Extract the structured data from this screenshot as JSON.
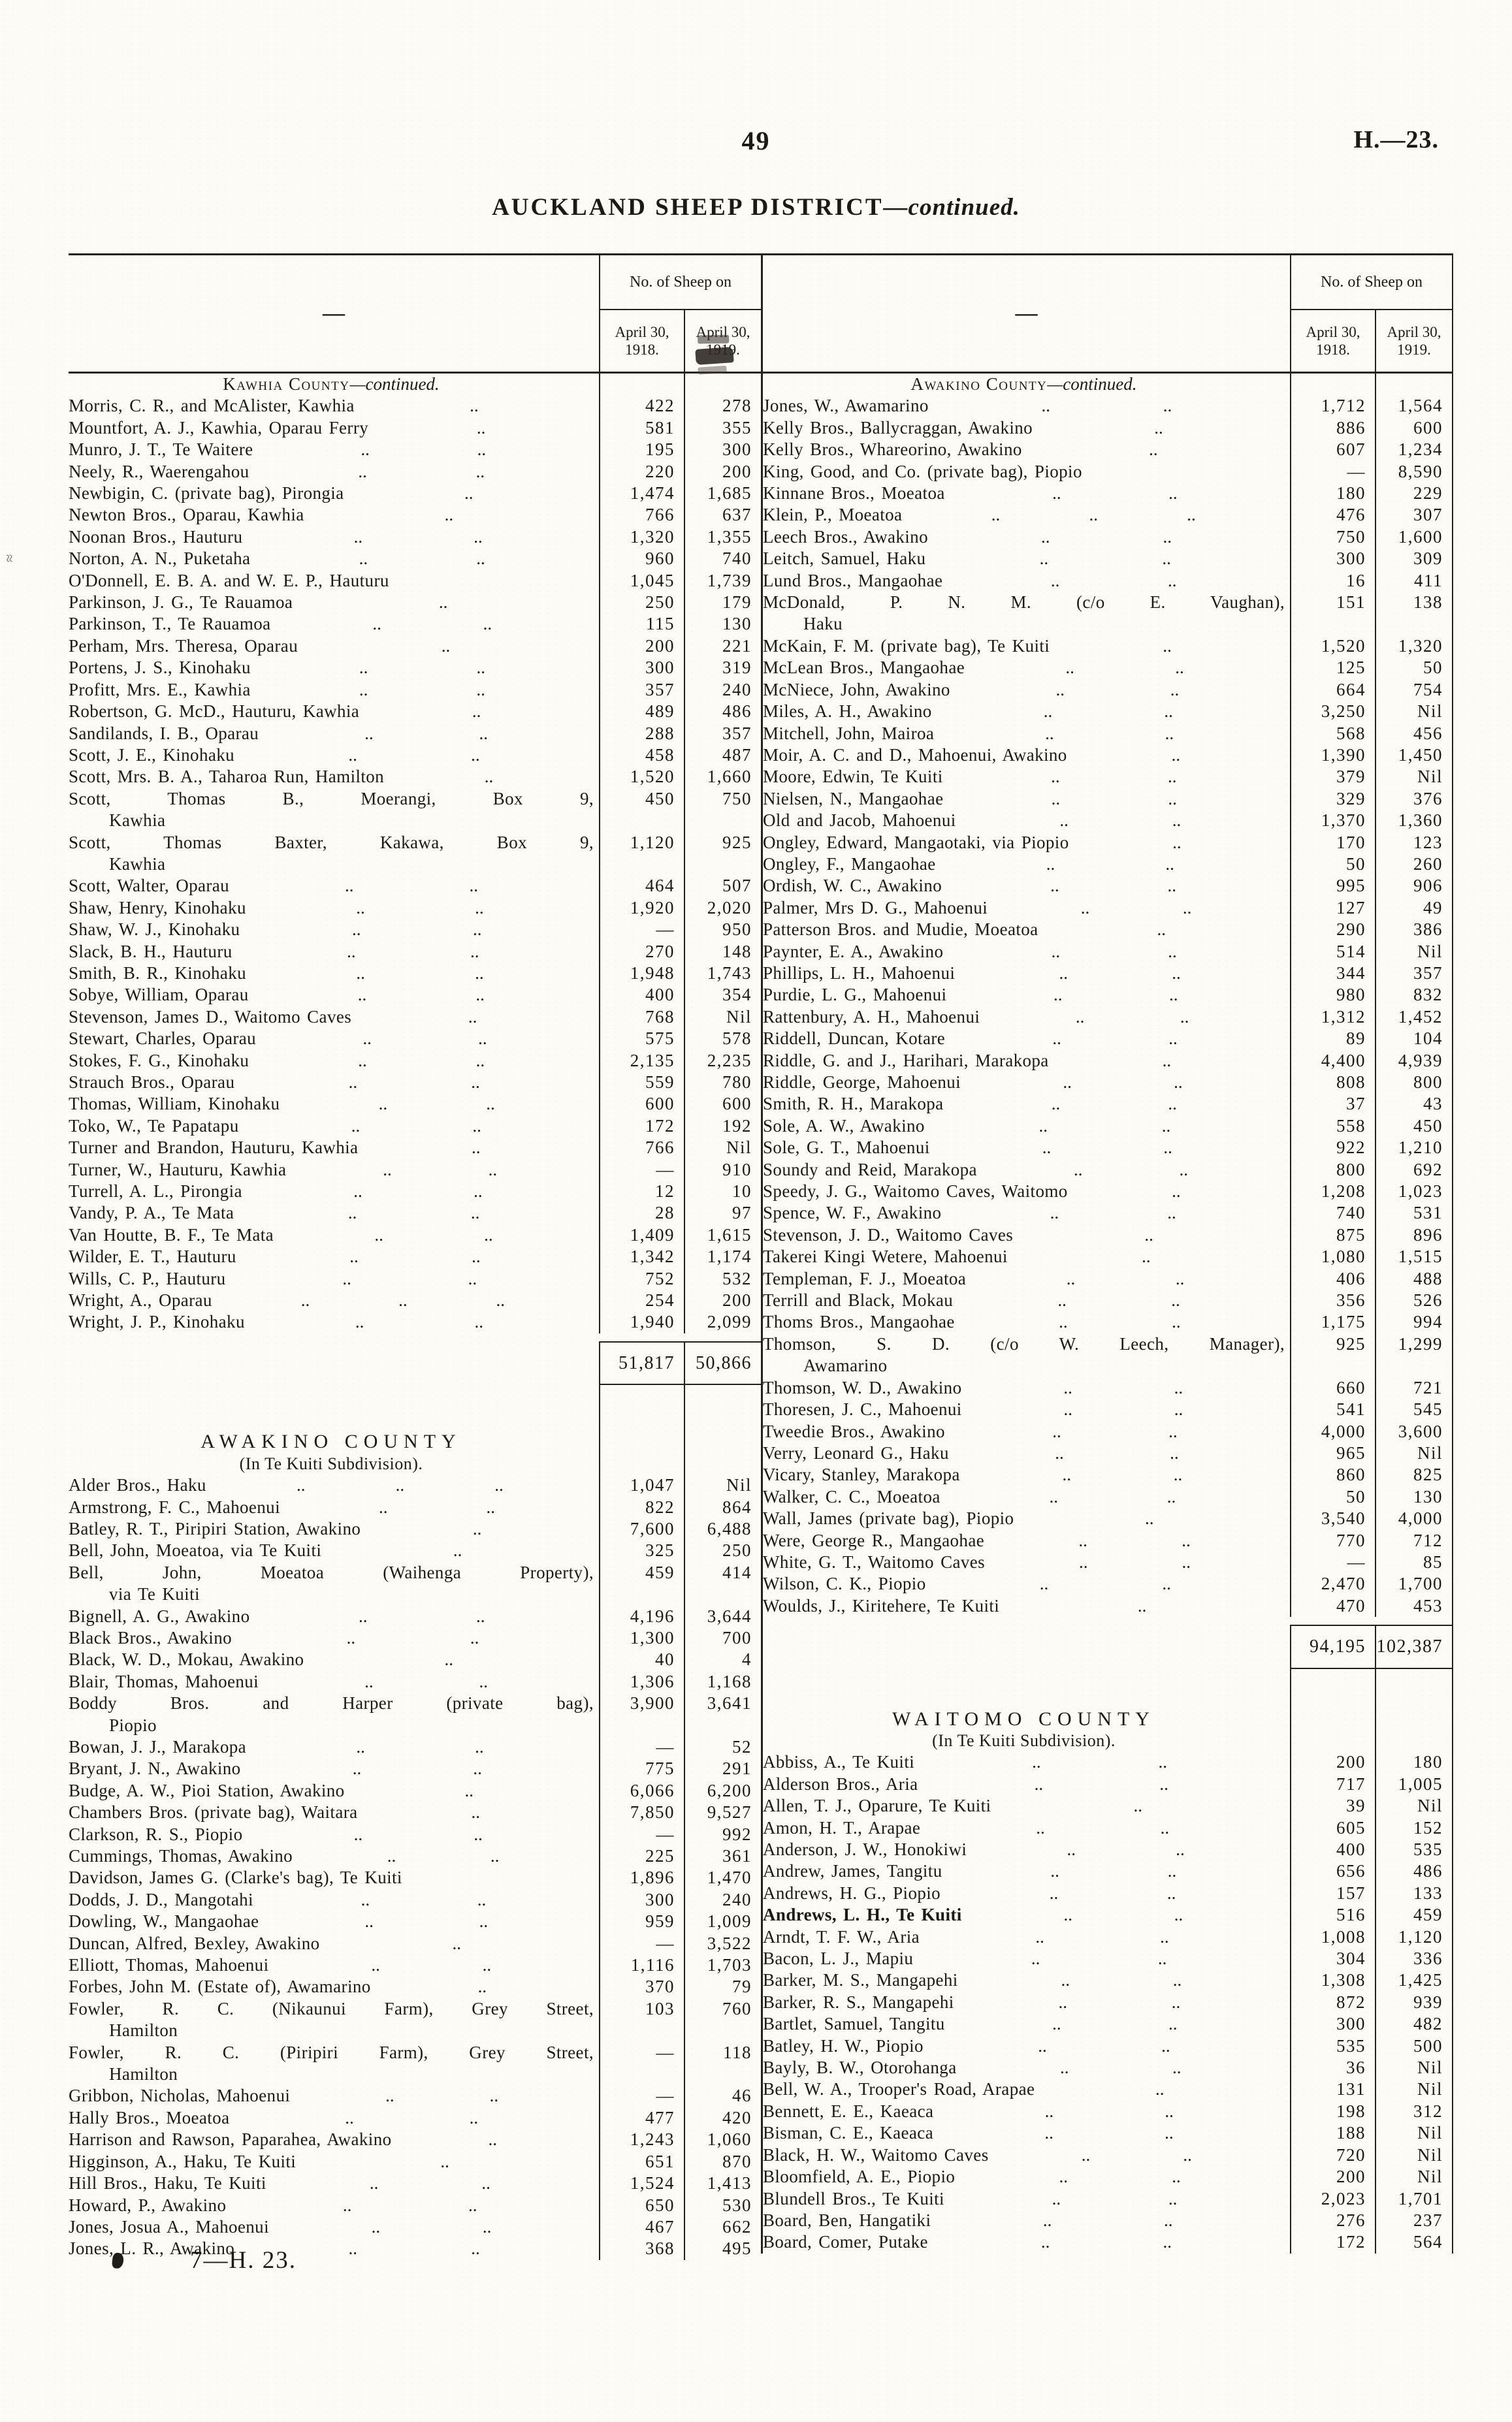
{
  "page": {
    "number": "49",
    "code": "H.—23.",
    "title": "AUCKLAND SHEEP DISTRICT",
    "title_suffix": "—continued.",
    "footer_sig": "7—H. 23."
  },
  "table_header": {
    "stub": "—",
    "span": "No. of Sheep on",
    "c1": [
      "April 30,",
      "1918."
    ],
    "c2": [
      "April 30,",
      "1919."
    ]
  },
  "left_table": {
    "sections": [
      {
        "heading": {
          "type": "continued",
          "title": "Kawhia County",
          "suffix": "—continued."
        },
        "rows": [
          {
            "n": "Morris, C. R., and McAlister, Kawhia",
            "a": "422",
            "b": "278"
          },
          {
            "n": "Mountfort, A. J., Kawhia, Oparau Ferry",
            "a": "581",
            "b": "355"
          },
          {
            "n": "Munro, J. T., Te Waitere",
            "a": "195",
            "b": "300"
          },
          {
            "n": "Neely, R., Waerengahou",
            "a": "220",
            "b": "200"
          },
          {
            "n": "Newbigin, C. (private bag), Pirongia",
            "a": "1,474",
            "b": "1,685"
          },
          {
            "n": "Newton Bros., Oparau, Kawhia",
            "a": "766",
            "b": "637"
          },
          {
            "n": "Noonan Bros., Hauturu",
            "a": "1,320",
            "b": "1,355"
          },
          {
            "n": "Norton, A. N., Puketaha",
            "a": "960",
            "b": "740"
          },
          {
            "n": "O'Donnell, E. B. A. and W. E. P., Hauturu",
            "a": "1,045",
            "b": "1,739"
          },
          {
            "n": "Parkinson, J. G., Te Rauamoa",
            "a": "250",
            "b": "179"
          },
          {
            "n": "Parkinson, T., Te Rauamoa",
            "a": "115",
            "b": "130"
          },
          {
            "n": "Perham, Mrs. Theresa, Oparau",
            "a": "200",
            "b": "221"
          },
          {
            "n": "Portens, J. S., Kinohaku",
            "a": "300",
            "b": "319"
          },
          {
            "n": "Profitt, Mrs. E., Kawhia",
            "a": "357",
            "b": "240"
          },
          {
            "n": "Robertson, G. McD., Hauturu, Kawhia",
            "a": "489",
            "b": "486"
          },
          {
            "n": "Sandilands, I. B., Oparau",
            "a": "288",
            "b": "357"
          },
          {
            "n": "Scott, J. E., Kinohaku",
            "a": "458",
            "b": "487"
          },
          {
            "n": "Scott, Mrs. B. A., Taharoa Run, Hamilton",
            "a": "1,520",
            "b": "1,660"
          },
          {
            "n": "Scott, Thomas B., Moerangi, Box 9,",
            "n2": "Kawhia",
            "a": "450",
            "b": "750"
          },
          {
            "n": "Scott, Thomas Baxter, Kakawa, Box 9,",
            "n2": "Kawhia",
            "a": "1,120",
            "b": "925"
          },
          {
            "n": "Scott, Walter, Oparau",
            "a": "464",
            "b": "507"
          },
          {
            "n": "Shaw, Henry, Kinohaku",
            "a": "1,920",
            "b": "2,020"
          },
          {
            "n": "Shaw, W. J., Kinohaku",
            "a": "—",
            "b": "950"
          },
          {
            "n": "Slack, B. H., Hauturu",
            "a": "270",
            "b": "148"
          },
          {
            "n": "Smith, B. R., Kinohaku",
            "a": "1,948",
            "b": "1,743"
          },
          {
            "n": "Sobye, William, Oparau",
            "a": "400",
            "b": "354"
          },
          {
            "n": "Stevenson, James D., Waitomo Caves",
            "a": "768",
            "b": "Nil"
          },
          {
            "n": "Stewart, Charles, Oparau",
            "a": "575",
            "b": "578"
          },
          {
            "n": "Stokes, F. G., Kinohaku",
            "a": "2,135",
            "b": "2,235"
          },
          {
            "n": "Strauch Bros., Oparau",
            "a": "559",
            "b": "780"
          },
          {
            "n": "Thomas, William, Kinohaku",
            "a": "600",
            "b": "600"
          },
          {
            "n": "Toko, W., Te Papatapu",
            "a": "172",
            "b": "192"
          },
          {
            "n": "Turner and Brandon, Hauturu, Kawhia",
            "a": "766",
            "b": "Nil"
          },
          {
            "n": "Turner, W., Hauturu, Kawhia",
            "a": "—",
            "b": "910"
          },
          {
            "n": "Turrell, A. L., Pirongia",
            "a": "12",
            "b": "10"
          },
          {
            "n": "Vandy, P. A., Te Mata",
            "a": "28",
            "b": "97"
          },
          {
            "n": "Van Houtte, B. F., Te Mata",
            "a": "1,409",
            "b": "1,615"
          },
          {
            "n": "Wilder, E. T., Hauturu",
            "a": "1,342",
            "b": "1,174"
          },
          {
            "n": "Wills, C. P., Hauturu",
            "a": "752",
            "b": "532"
          },
          {
            "n": "Wright, A., Oparau",
            "a": "254",
            "b": "200"
          },
          {
            "n": "Wright, J. P., Kinohaku",
            "a": "1,940",
            "b": "2,099"
          }
        ],
        "total": {
          "a": "51,817",
          "b": "50,866"
        }
      },
      {
        "heading": {
          "type": "new",
          "title": "AWAKINO COUNTY",
          "sub": "(In Te Kuiti Subdivision)."
        },
        "gap_before": 70,
        "rows": [
          {
            "n": "Alder Bros., Haku",
            "a": "1,047",
            "b": "Nil"
          },
          {
            "n": "Armstrong, F. C., Mahoenui",
            "a": "822",
            "b": "864"
          },
          {
            "n": "Batley, R. T., Piripiri Station, Awakino",
            "a": "7,600",
            "b": "6,488"
          },
          {
            "n": "Bell, John, Moeatoa, via Te Kuiti",
            "a": "325",
            "b": "250"
          },
          {
            "n": "Bell, John, Moeatoa (Waihenga Property),",
            "n2": "via Te Kuiti",
            "a": "459",
            "b": "414"
          },
          {
            "n": "Bignell, A. G., Awakino",
            "a": "4,196",
            "b": "3,644"
          },
          {
            "n": "Black Bros., Awakino",
            "a": "1,300",
            "b": "700"
          },
          {
            "n": "Black, W. D., Mokau, Awakino",
            "a": "40",
            "b": "4"
          },
          {
            "n": "Blair, Thomas, Mahoenui",
            "a": "1,306",
            "b": "1,168"
          },
          {
            "n": "Boddy Bros. and Harper (private bag),",
            "n2": "Piopio",
            "a": "3,900",
            "b": "3,641"
          },
          {
            "n": "Bowan, J. J., Marakopa",
            "a": "—",
            "b": "52"
          },
          {
            "n": "Bryant, J. N., Awakino",
            "a": "775",
            "b": "291"
          },
          {
            "n": "Budge, A. W., Pioi Station, Awakino",
            "a": "6,066",
            "b": "6,200"
          },
          {
            "n": "Chambers Bros. (private bag), Waitara",
            "a": "7,850",
            "b": "9,527"
          },
          {
            "n": "Clarkson, R. S., Piopio",
            "a": "—",
            "b": "992"
          },
          {
            "n": "Cummings, Thomas, Awakino",
            "a": "225",
            "b": "361"
          },
          {
            "n": "Davidson, James G. (Clarke's bag), Te Kuiti",
            "a": "1,896",
            "b": "1,470"
          },
          {
            "n": "Dodds, J. D., Mangotahi",
            "a": "300",
            "b": "240"
          },
          {
            "n": "Dowling, W., Mangaohae",
            "a": "959",
            "b": "1,009"
          },
          {
            "n": "Duncan, Alfred, Bexley, Awakino",
            "a": "—",
            "b": "3,522"
          },
          {
            "n": "Elliott, Thomas, Mahoenui",
            "a": "1,116",
            "b": "1,703"
          },
          {
            "n": "Forbes, John M. (Estate of), Awamarino",
            "a": "370",
            "b": "79"
          },
          {
            "n": "Fowler, R. C. (Nikaunui Farm), Grey Street,",
            "n2": "Hamilton",
            "a": "103",
            "b": "760"
          },
          {
            "n": "Fowler, R. C. (Piripiri Farm), Grey Street,",
            "n2": "Hamilton",
            "a": "—",
            "b": "118"
          },
          {
            "n": "Gribbon, Nicholas, Mahoenui",
            "a": "—",
            "b": "46"
          },
          {
            "n": "Hally Bros., Moeatoa",
            "a": "477",
            "b": "420"
          },
          {
            "n": "Harrison and Rawson, Paparahea, Awakino",
            "a": "1,243",
            "b": "1,060"
          },
          {
            "n": "Higginson, A., Haku, Te Kuiti",
            "a": "651",
            "b": "870"
          },
          {
            "n": "Hill Bros., Haku, Te Kuiti",
            "a": "1,524",
            "b": "1,413"
          },
          {
            "n": "Howard, P., Awakino",
            "a": "650",
            "b": "530"
          },
          {
            "n": "Jones, Josua A., Mahoenui",
            "a": "467",
            "b": "662"
          },
          {
            "n": "Jones, L. R., Awakino",
            "a": "368",
            "b": "495"
          }
        ],
        "total": null
      }
    ]
  },
  "right_table": {
    "sections": [
      {
        "heading": {
          "type": "continued",
          "title": "Awakino County",
          "suffix": "—continued."
        },
        "rows": [
          {
            "n": "Jones, W., Awamarino",
            "a": "1,712",
            "b": "1,564"
          },
          {
            "n": "Kelly Bros., Ballycraggan, Awakino",
            "a": "886",
            "b": "600"
          },
          {
            "n": "Kelly Bros., Whareorino, Awakino",
            "a": "607",
            "b": "1,234"
          },
          {
            "n": "King, Good, and Co. (private bag), Piopio",
            "a": "—",
            "b": "8,590"
          },
          {
            "n": "Kinnane Bros., Moeatoa",
            "a": "180",
            "b": "229"
          },
          {
            "n": "Klein, P., Moeatoa",
            "a": "476",
            "b": "307"
          },
          {
            "n": "Leech Bros., Awakino",
            "a": "750",
            "b": "1,600"
          },
          {
            "n": "Leitch, Samuel, Haku",
            "a": "300",
            "b": "309"
          },
          {
            "n": "Lund Bros., Mangaohae",
            "a": "16",
            "b": "411"
          },
          {
            "n": "McDonald, P. N. M. (c/o E. Vaughan),",
            "n2": "Haku",
            "a": "151",
            "b": "138"
          },
          {
            "n": "McKain, F. M. (private bag), Te Kuiti",
            "a": "1,520",
            "b": "1,320"
          },
          {
            "n": "McLean Bros., Mangaohae",
            "a": "125",
            "b": "50"
          },
          {
            "n": "McNiece, John, Awakino",
            "a": "664",
            "b": "754"
          },
          {
            "n": "Miles, A. H., Awakino",
            "a": "3,250",
            "b": "Nil"
          },
          {
            "n": "Mitchell, John, Mairoa",
            "a": "568",
            "b": "456"
          },
          {
            "n": "Moir, A. C. and D., Mahoenui, Awakino",
            "a": "1,390",
            "b": "1,450"
          },
          {
            "n": "Moore, Edwin, Te Kuiti",
            "a": "379",
            "b": "Nil"
          },
          {
            "n": "Nielsen, N., Mangaohae",
            "a": "329",
            "b": "376"
          },
          {
            "n": "Old and Jacob, Mahoenui",
            "a": "1,370",
            "b": "1,360"
          },
          {
            "n": "Ongley, Edward, Mangaotaki, via Piopio",
            "a": "170",
            "b": "123"
          },
          {
            "n": "Ongley, F., Mangaohae",
            "a": "50",
            "b": "260"
          },
          {
            "n": "Ordish, W. C., Awakino",
            "a": "995",
            "b": "906"
          },
          {
            "n": "Palmer, Mrs D. G., Mahoenui",
            "a": "127",
            "b": "49"
          },
          {
            "n": "Patterson Bros. and Mudie, Moeatoa",
            "a": "290",
            "b": "386"
          },
          {
            "n": "Paynter, E. A., Awakino",
            "a": "514",
            "b": "Nil"
          },
          {
            "n": "Phillips, L. H., Mahoenui",
            "a": "344",
            "b": "357"
          },
          {
            "n": "Purdie, L. G., Mahoenui",
            "a": "980",
            "b": "832"
          },
          {
            "n": "Rattenbury, A. H., Mahoenui",
            "a": "1,312",
            "b": "1,452"
          },
          {
            "n": "Riddell, Duncan, Kotare",
            "a": "89",
            "b": "104"
          },
          {
            "n": "Riddle, G. and J., Harihari, Marakopa",
            "a": "4,400",
            "b": "4,939"
          },
          {
            "n": "Riddle, George, Mahoenui",
            "a": "808",
            "b": "800"
          },
          {
            "n": "Smith, R. H., Marakopa",
            "a": "37",
            "b": "43"
          },
          {
            "n": "Sole, A. W., Awakino",
            "a": "558",
            "b": "450"
          },
          {
            "n": "Sole, G. T., Mahoenui",
            "a": "922",
            "b": "1,210"
          },
          {
            "n": "Soundy and Reid, Marakopa",
            "a": "800",
            "b": "692"
          },
          {
            "n": "Speedy, J. G., Waitomo Caves, Waitomo",
            "a": "1,208",
            "b": "1,023"
          },
          {
            "n": "Spence, W. F., Awakino",
            "a": "740",
            "b": "531"
          },
          {
            "n": "Stevenson, J. D., Waitomo Caves",
            "a": "875",
            "b": "896"
          },
          {
            "n": "Takerei Kingi Wetere, Mahoenui",
            "a": "1,080",
            "b": "1,515"
          },
          {
            "n": "Templeman, F. J., Moeatoa",
            "a": "406",
            "b": "488"
          },
          {
            "n": "Terrill and Black, Mokau",
            "a": "356",
            "b": "526"
          },
          {
            "n": "Thoms Bros., Mangaohae",
            "a": "1,175",
            "b": "994"
          },
          {
            "n": "Thomson, S. D. (c/o W. Leech, Manager),",
            "n2": "Awamarino",
            "a": "925",
            "b": "1,299"
          },
          {
            "n": "Thomson, W. D., Awakino",
            "a": "660",
            "b": "721"
          },
          {
            "n": "Thoresen, J. C., Mahoenui",
            "a": "541",
            "b": "545"
          },
          {
            "n": "Tweedie Bros., Awakino",
            "a": "4,000",
            "b": "3,600"
          },
          {
            "n": "Verry, Leonard G., Haku",
            "a": "965",
            "b": "Nil"
          },
          {
            "n": "Vicary, Stanley, Marakopa",
            "a": "860",
            "b": "825"
          },
          {
            "n": "Walker, C. C., Moeatoa",
            "a": "50",
            "b": "130"
          },
          {
            "n": "Wall, James (private bag), Piopio",
            "a": "3,540",
            "b": "4,000"
          },
          {
            "n": "Were, George R., Mangaohae",
            "a": "770",
            "b": "712"
          },
          {
            "n": "White, G. T., Waitomo Caves",
            "a": "—",
            "b": "85"
          },
          {
            "n": "Wilson, C. K., Piopio",
            "a": "2,470",
            "b": "1,700"
          },
          {
            "n": "Woulds, J., Kiritehere, Te Kuiti",
            "a": "470",
            "b": "453"
          }
        ],
        "total": {
          "a": "94,195",
          "b": "102,387"
        }
      },
      {
        "heading": {
          "type": "new",
          "title": "WAITOMO COUNTY",
          "sub": "(In Te Kuiti Subdivision)."
        },
        "gap_before": 60,
        "rows": [
          {
            "n": "Abbiss, A., Te Kuiti",
            "a": "200",
            "b": "180"
          },
          {
            "n": "Alderson Bros., Aria",
            "a": "717",
            "b": "1,005"
          },
          {
            "n": "Allen, T. J., Oparure, Te Kuiti",
            "a": "39",
            "b": "Nil"
          },
          {
            "n": "Amon, H. T., Arapae",
            "a": "605",
            "b": "152"
          },
          {
            "n": "Anderson, J. W., Honokiwi",
            "a": "400",
            "b": "535"
          },
          {
            "n": "Andrew, James, Tangitu",
            "a": "656",
            "b": "486"
          },
          {
            "n": "Andrews, H. G., Piopio",
            "a": "157",
            "b": "133"
          },
          {
            "n": "Andrews, L. H., Te Kuiti",
            "a": "516",
            "b": "459",
            "bold": true
          },
          {
            "n": "Arndt, T. F. W., Aria",
            "a": "1,008",
            "b": "1,120"
          },
          {
            "n": "Bacon, L. J., Mapiu",
            "a": "304",
            "b": "336"
          },
          {
            "n": "Barker, M. S., Mangapehi",
            "a": "1,308",
            "b": "1,425"
          },
          {
            "n": "Barker, R. S., Mangapehi",
            "a": "872",
            "b": "939"
          },
          {
            "n": "Bartlet, Samuel, Tangitu",
            "a": "300",
            "b": "482"
          },
          {
            "n": "Batley, H. W., Piopio",
            "a": "535",
            "b": "500"
          },
          {
            "n": "Bayly, B. W., Otorohanga",
            "a": "36",
            "b": "Nil"
          },
          {
            "n": "Bell, W. A., Trooper's Road, Arapae",
            "a": "131",
            "b": "Nil"
          },
          {
            "n": "Bennett, E. E., Kaeaca",
            "a": "198",
            "b": "312"
          },
          {
            "n": "Bisman, C. E., Kaeaca",
            "a": "188",
            "b": "Nil"
          },
          {
            "n": "Black, H. W., Waitomo Caves",
            "a": "720",
            "b": "Nil"
          },
          {
            "n": "Bloomfield, A. E., Piopio",
            "a": "200",
            "b": "Nil"
          },
          {
            "n": "Blundell Bros., Te Kuiti",
            "a": "2,023",
            "b": "1,701"
          },
          {
            "n": "Board, Ben, Hangatiki",
            "a": "276",
            "b": "237"
          },
          {
            "n": "Board, Comer, Putake",
            "a": "172",
            "b": "564"
          }
        ],
        "total": null
      }
    ]
  }
}
